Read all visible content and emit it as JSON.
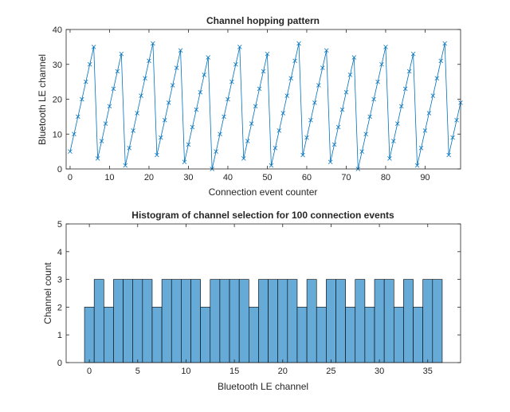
{
  "chart_data": [
    {
      "type": "line",
      "title": "Channel hopping pattern",
      "xlabel": "Connection event counter",
      "ylabel": "Bluetooth LE channel",
      "xlim": [
        -1,
        99
      ],
      "ylim": [
        0,
        40
      ],
      "xticks": [
        0,
        10,
        20,
        30,
        40,
        50,
        60,
        70,
        80,
        90
      ],
      "yticks": [
        0,
        10,
        20,
        30,
        40
      ],
      "marker": "x",
      "grid": false,
      "color": "#0072BD",
      "x_start": 0,
      "y": [
        5,
        10,
        15,
        20,
        25,
        30,
        35,
        3,
        8,
        13,
        18,
        23,
        28,
        33,
        1,
        6,
        11,
        16,
        21,
        26,
        31,
        36,
        4,
        9,
        14,
        19,
        24,
        29,
        34,
        2,
        7,
        12,
        17,
        22,
        27,
        32,
        0,
        5,
        10,
        15,
        20,
        25,
        30,
        35,
        3,
        8,
        13,
        18,
        23,
        28,
        33,
        1,
        6,
        11,
        16,
        21,
        26,
        31,
        36,
        4,
        9,
        14,
        19,
        24,
        29,
        34,
        2,
        7,
        12,
        17,
        22,
        27,
        32,
        0,
        5,
        10,
        15,
        20,
        25,
        30,
        35,
        3,
        8,
        13,
        18,
        23,
        28,
        33,
        1,
        6,
        11,
        16,
        21,
        26,
        31,
        36,
        4,
        9,
        14,
        19
      ]
    },
    {
      "type": "bar",
      "title": "Histogram of channel selection for 100 connection events",
      "xlabel": "Bluetooth LE channel",
      "ylabel": "Channel count",
      "xlim": [
        -2.4,
        38.4
      ],
      "ylim": [
        0,
        5
      ],
      "xticks": [
        0,
        5,
        10,
        15,
        20,
        25,
        30,
        35
      ],
      "yticks": [
        0,
        1,
        2,
        3,
        4,
        5
      ],
      "grid": false,
      "color": "#66AAD7",
      "edge_color": "#000000",
      "categories": [
        0,
        1,
        2,
        3,
        4,
        5,
        6,
        7,
        8,
        9,
        10,
        11,
        12,
        13,
        14,
        15,
        16,
        17,
        18,
        19,
        20,
        21,
        22,
        23,
        24,
        25,
        26,
        27,
        28,
        29,
        30,
        31,
        32,
        33,
        34,
        35,
        36
      ],
      "values": [
        2,
        3,
        2,
        3,
        3,
        3,
        3,
        2,
        3,
        3,
        3,
        3,
        2,
        3,
        3,
        3,
        3,
        2,
        3,
        3,
        3,
        3,
        2,
        3,
        2,
        3,
        3,
        2,
        3,
        2,
        3,
        3,
        2,
        3,
        2,
        3,
        3
      ]
    }
  ]
}
